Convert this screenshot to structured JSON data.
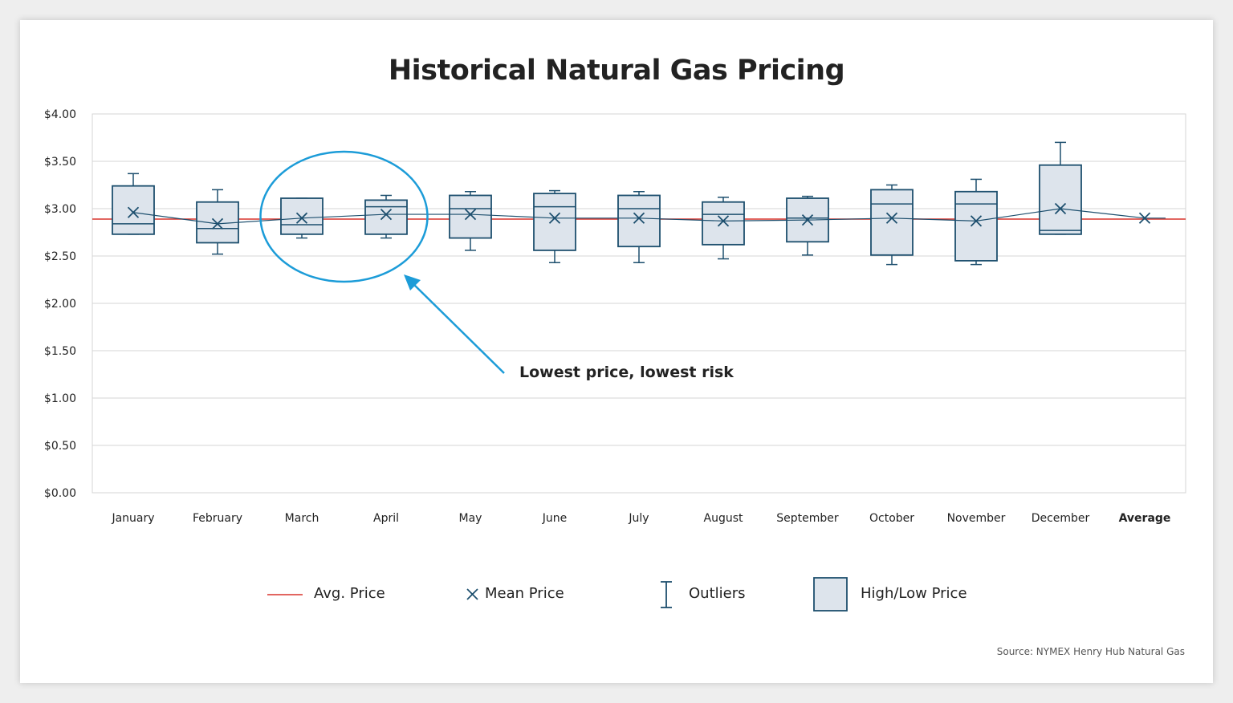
{
  "colors": {
    "box_fill": "#dde4ec",
    "box_stroke": "#1d4f6e",
    "avg_line": "#d9342b",
    "highlight_circle": "#1c9cd8",
    "grid": "#d4d4d4"
  },
  "annotation": {
    "text": "Lowest price, lowest risk",
    "highlighted_months": [
      "March",
      "April"
    ]
  },
  "legend": {
    "avg_price": "Avg. Price",
    "mean_price": "Mean Price",
    "outliers": "Outliers",
    "high_low": "High/Low Price"
  },
  "source": "Source: NYMEX Henry Hub Natural Gas",
  "chart_data": {
    "type": "box",
    "title": "Historical Natural Gas Pricing",
    "xlabel": "",
    "ylabel": "",
    "ylim": [
      0,
      4
    ],
    "y_ticks": [
      "$0.00",
      "$0.50",
      "$1.00",
      "$1.50",
      "$2.00",
      "$2.50",
      "$3.00",
      "$3.50",
      "$4.00"
    ],
    "grid": true,
    "avg_price": 2.89,
    "categories": [
      "January",
      "February",
      "March",
      "April",
      "May",
      "June",
      "July",
      "August",
      "September",
      "October",
      "November",
      "December",
      "Average"
    ],
    "boxes": [
      {
        "month": "January",
        "whisker_low": 2.73,
        "q1": 2.73,
        "median": 2.84,
        "q3": 3.24,
        "whisker_high": 3.37,
        "mean": 2.96
      },
      {
        "month": "February",
        "whisker_low": 2.52,
        "q1": 2.64,
        "median": 2.79,
        "q3": 3.07,
        "whisker_high": 3.2,
        "mean": 2.84
      },
      {
        "month": "March",
        "whisker_low": 2.69,
        "q1": 2.73,
        "median": 2.83,
        "q3": 3.11,
        "whisker_high": 3.11,
        "mean": 2.9
      },
      {
        "month": "April",
        "whisker_low": 2.69,
        "q1": 2.73,
        "median": 3.02,
        "q3": 3.09,
        "whisker_high": 3.14,
        "mean": 2.94
      },
      {
        "month": "May",
        "whisker_low": 2.56,
        "q1": 2.69,
        "median": 3.0,
        "q3": 3.14,
        "whisker_high": 3.18,
        "mean": 2.94
      },
      {
        "month": "June",
        "whisker_low": 2.43,
        "q1": 2.56,
        "median": 3.02,
        "q3": 3.16,
        "whisker_high": 3.19,
        "mean": 2.9
      },
      {
        "month": "July",
        "whisker_low": 2.43,
        "q1": 2.6,
        "median": 3.0,
        "q3": 3.14,
        "whisker_high": 3.18,
        "mean": 2.9
      },
      {
        "month": "August",
        "whisker_low": 2.47,
        "q1": 2.62,
        "median": 2.94,
        "q3": 3.07,
        "whisker_high": 3.12,
        "mean": 2.87
      },
      {
        "month": "September",
        "whisker_low": 2.51,
        "q1": 2.65,
        "median": 2.9,
        "q3": 3.11,
        "whisker_high": 3.13,
        "mean": 2.88
      },
      {
        "month": "October",
        "whisker_low": 2.41,
        "q1": 2.51,
        "median": 3.05,
        "q3": 3.2,
        "whisker_high": 3.25,
        "mean": 2.9
      },
      {
        "month": "November",
        "whisker_low": 2.41,
        "q1": 2.45,
        "median": 3.05,
        "q3": 3.18,
        "whisker_high": 3.31,
        "mean": 2.87
      },
      {
        "month": "December",
        "whisker_low": 2.73,
        "q1": 2.73,
        "median": 2.77,
        "q3": 3.46,
        "whisker_high": 3.7,
        "mean": 3.0
      }
    ],
    "average_mean": 2.9
  }
}
